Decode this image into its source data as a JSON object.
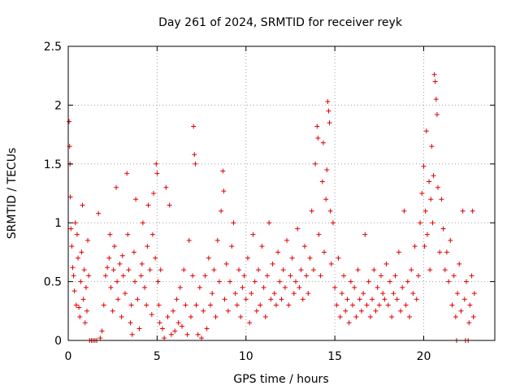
{
  "chart_data": {
    "type": "scatter",
    "title": "Day 261 of 2024, SRMTID for receiver reyk",
    "xlabel": "GPS time / hours",
    "ylabel": "SRMTID / TECUs",
    "xlim": [
      0,
      24
    ],
    "ylim": [
      0,
      2.5
    ],
    "x_ticks": [
      0,
      5,
      10,
      15,
      20
    ],
    "x_tick_labels": [
      "0",
      "5",
      "10",
      "15",
      "20"
    ],
    "y_ticks": [
      0,
      0.5,
      1,
      1.5,
      2,
      2.5
    ],
    "y_tick_labels": [
      "0",
      "0.5",
      "1",
      "1.5",
      "2",
      "2.5"
    ],
    "grid": true,
    "marker": "plus",
    "series": [
      {
        "name": "SRMTID",
        "color": "#e00000",
        "points": [
          [
            0.05,
            1.86
          ],
          [
            0.08,
            1.65
          ],
          [
            0.1,
            1.5
          ],
          [
            0.12,
            1.22
          ],
          [
            0.15,
            0.95
          ],
          [
            0.2,
            0.8
          ],
          [
            0.25,
            0.62
          ],
          [
            0.3,
            0.55
          ],
          [
            0.35,
            0.42
          ],
          [
            0.4,
            1.0
          ],
          [
            0.45,
            0.3
          ],
          [
            0.5,
            0.9
          ],
          [
            0.55,
            0.7
          ],
          [
            0.6,
            0.28
          ],
          [
            0.65,
            0.2
          ],
          [
            0.7,
            0.5
          ],
          [
            0.75,
            0.75
          ],
          [
            0.8,
            1.15
          ],
          [
            0.85,
            0.35
          ],
          [
            0.9,
            0.6
          ],
          [
            0.95,
            0.15
          ],
          [
            1.0,
            0.45
          ],
          [
            1.05,
            0.25
          ],
          [
            1.1,
            0.85
          ],
          [
            1.15,
            0.55
          ],
          [
            1.2,
            0.0
          ],
          [
            1.3,
            0.0
          ],
          [
            1.4,
            0.0
          ],
          [
            1.5,
            0.0
          ],
          [
            1.6,
            0.0
          ],
          [
            1.7,
            1.08
          ],
          [
            1.8,
            0.02
          ],
          [
            1.9,
            0.08
          ],
          [
            2.0,
            0.3
          ],
          [
            2.1,
            0.55
          ],
          [
            2.2,
            0.62
          ],
          [
            2.3,
            0.7
          ],
          [
            2.35,
            0.9
          ],
          [
            2.4,
            0.45
          ],
          [
            2.5,
            0.25
          ],
          [
            2.55,
            0.6
          ],
          [
            2.6,
            0.8
          ],
          [
            2.7,
            1.3
          ],
          [
            2.75,
            0.5
          ],
          [
            2.8,
            0.35
          ],
          [
            2.9,
            0.65
          ],
          [
            3.0,
            0.2
          ],
          [
            3.05,
            0.72
          ],
          [
            3.1,
            0.55
          ],
          [
            3.2,
            0.4
          ],
          [
            3.3,
            1.42
          ],
          [
            3.35,
            0.9
          ],
          [
            3.4,
            0.6
          ],
          [
            3.5,
            0.15
          ],
          [
            3.55,
            0.3
          ],
          [
            3.6,
            0.05
          ],
          [
            3.7,
            0.75
          ],
          [
            3.75,
            0.5
          ],
          [
            3.8,
            1.2
          ],
          [
            3.9,
            0.35
          ],
          [
            4.0,
            0.1
          ],
          [
            4.1,
            0.55
          ],
          [
            4.15,
            0.65
          ],
          [
            4.2,
            1.0
          ],
          [
            4.3,
            0.45
          ],
          [
            4.4,
            0.3
          ],
          [
            4.45,
            0.8
          ],
          [
            4.5,
            1.15
          ],
          [
            4.6,
            0.6
          ],
          [
            4.7,
            0.22
          ],
          [
            4.75,
            0.9
          ],
          [
            4.8,
            1.25
          ],
          [
            4.9,
            0.7
          ],
          [
            4.95,
            1.5
          ],
          [
            5.0,
            1.42
          ],
          [
            5.05,
            0.5
          ],
          [
            5.1,
            0.3
          ],
          [
            5.15,
            0.15
          ],
          [
            5.2,
            0.6
          ],
          [
            5.3,
            0.1
          ],
          [
            5.4,
            0.02
          ],
          [
            5.5,
            1.3
          ],
          [
            5.6,
            0.2
          ],
          [
            5.7,
            1.15
          ],
          [
            5.8,
            0.05
          ],
          [
            5.9,
            0.25
          ],
          [
            6.0,
            0.08
          ],
          [
            6.1,
            0.35
          ],
          [
            6.2,
            0.15
          ],
          [
            6.3,
            0.45
          ],
          [
            6.4,
            0.12
          ],
          [
            6.5,
            0.6
          ],
          [
            6.6,
            0.3
          ],
          [
            6.7,
            0.05
          ],
          [
            6.8,
            0.85
          ],
          [
            6.9,
            0.2
          ],
          [
            7.0,
            0.55
          ],
          [
            7.05,
            1.82
          ],
          [
            7.1,
            1.58
          ],
          [
            7.15,
            1.5
          ],
          [
            7.2,
            0.3
          ],
          [
            7.3,
            0.05
          ],
          [
            7.4,
            0.45
          ],
          [
            7.5,
            0.02
          ],
          [
            7.6,
            0.25
          ],
          [
            7.7,
            0.55
          ],
          [
            7.8,
            0.1
          ],
          [
            7.9,
            0.7
          ],
          [
            8.0,
            0.3
          ],
          [
            8.1,
            0.4
          ],
          [
            8.2,
            0.6
          ],
          [
            8.3,
            0.2
          ],
          [
            8.4,
            0.85
          ],
          [
            8.5,
            0.5
          ],
          [
            8.6,
            1.1
          ],
          [
            8.7,
            1.44
          ],
          [
            8.75,
            1.27
          ],
          [
            8.8,
            0.35
          ],
          [
            8.9,
            0.65
          ],
          [
            9.0,
            0.25
          ],
          [
            9.1,
            0.5
          ],
          [
            9.2,
            0.8
          ],
          [
            9.3,
            1.0
          ],
          [
            9.4,
            0.4
          ],
          [
            9.5,
            0.3
          ],
          [
            9.6,
            0.6
          ],
          [
            9.7,
            0.2
          ],
          [
            9.8,
            0.45
          ],
          [
            9.9,
            0.55
          ],
          [
            10.0,
            0.35
          ],
          [
            10.1,
            0.7
          ],
          [
            10.2,
            0.15
          ],
          [
            10.3,
            0.4
          ],
          [
            10.4,
            0.9
          ],
          [
            10.5,
            0.5
          ],
          [
            10.6,
            0.25
          ],
          [
            10.7,
            0.6
          ],
          [
            10.8,
            0.3
          ],
          [
            10.9,
            0.8
          ],
          [
            11.0,
            0.45
          ],
          [
            11.1,
            0.2
          ],
          [
            11.2,
            0.55
          ],
          [
            11.3,
            1.0
          ],
          [
            11.4,
            0.35
          ],
          [
            11.5,
            0.65
          ],
          [
            11.6,
            0.4
          ],
          [
            11.7,
            0.3
          ],
          [
            11.8,
            0.75
          ],
          [
            11.9,
            0.5
          ],
          [
            12.0,
            0.35
          ],
          [
            12.1,
            0.6
          ],
          [
            12.2,
            0.45
          ],
          [
            12.3,
            0.85
          ],
          [
            12.4,
            0.3
          ],
          [
            12.5,
            0.55
          ],
          [
            12.6,
            0.7
          ],
          [
            12.7,
            0.4
          ],
          [
            12.8,
            0.5
          ],
          [
            12.9,
            0.95
          ],
          [
            13.0,
            0.45
          ],
          [
            13.1,
            0.6
          ],
          [
            13.2,
            0.35
          ],
          [
            13.3,
            0.8
          ],
          [
            13.4,
            0.55
          ],
          [
            13.5,
            0.4
          ],
          [
            13.6,
            0.7
          ],
          [
            13.7,
            1.1
          ],
          [
            13.8,
            0.6
          ],
          [
            13.9,
            1.5
          ],
          [
            14.0,
            1.82
          ],
          [
            14.05,
            1.72
          ],
          [
            14.1,
            0.9
          ],
          [
            14.2,
            0.55
          ],
          [
            14.3,
            1.35
          ],
          [
            14.35,
            1.68
          ],
          [
            14.4,
            0.75
          ],
          [
            14.5,
            1.2
          ],
          [
            14.55,
            1.45
          ],
          [
            14.6,
            2.03
          ],
          [
            14.65,
            1.95
          ],
          [
            14.7,
            1.85
          ],
          [
            14.75,
            1.1
          ],
          [
            14.8,
            0.65
          ],
          [
            14.9,
            1.0
          ],
          [
            15.0,
            0.45
          ],
          [
            15.1,
            0.3
          ],
          [
            15.2,
            0.7
          ],
          [
            15.3,
            0.2
          ],
          [
            15.4,
            0.4
          ],
          [
            15.5,
            0.55
          ],
          [
            15.6,
            0.25
          ],
          [
            15.7,
            0.35
          ],
          [
            15.8,
            0.15
          ],
          [
            15.9,
            0.5
          ],
          [
            16.0,
            0.3
          ],
          [
            16.1,
            0.45
          ],
          [
            16.2,
            0.2
          ],
          [
            16.3,
            0.6
          ],
          [
            16.4,
            0.35
          ],
          [
            16.5,
            0.25
          ],
          [
            16.6,
            0.4
          ],
          [
            16.7,
            0.9
          ],
          [
            16.8,
            0.3
          ],
          [
            16.9,
            0.5
          ],
          [
            17.0,
            0.2
          ],
          [
            17.1,
            0.35
          ],
          [
            17.2,
            0.6
          ],
          [
            17.3,
            0.25
          ],
          [
            17.4,
            0.45
          ],
          [
            17.5,
            0.3
          ],
          [
            17.6,
            0.55
          ],
          [
            17.7,
            0.4
          ],
          [
            17.8,
            0.35
          ],
          [
            17.9,
            0.65
          ],
          [
            18.0,
            0.3
          ],
          [
            18.1,
            0.5
          ],
          [
            18.2,
            0.2
          ],
          [
            18.3,
            0.4
          ],
          [
            18.4,
            0.55
          ],
          [
            18.5,
            0.35
          ],
          [
            18.6,
            0.75
          ],
          [
            18.7,
            0.25
          ],
          [
            18.8,
            0.45
          ],
          [
            18.9,
            1.1
          ],
          [
            19.0,
            0.3
          ],
          [
            19.1,
            0.5
          ],
          [
            19.2,
            0.2
          ],
          [
            19.3,
            0.6
          ],
          [
            19.4,
            0.4
          ],
          [
            19.5,
            0.8
          ],
          [
            19.6,
            0.35
          ],
          [
            19.7,
            0.55
          ],
          [
            19.8,
            1.0
          ],
          [
            19.9,
            1.25
          ],
          [
            20.0,
            1.48
          ],
          [
            20.05,
            0.8
          ],
          [
            20.1,
            1.1
          ],
          [
            20.15,
            1.78
          ],
          [
            20.2,
            0.9
          ],
          [
            20.3,
            1.35
          ],
          [
            20.35,
            0.6
          ],
          [
            20.4,
            1.2
          ],
          [
            20.45,
            1.65
          ],
          [
            20.5,
            1.0
          ],
          [
            20.55,
            1.4
          ],
          [
            20.6,
            2.26
          ],
          [
            20.65,
            2.2
          ],
          [
            20.7,
            2.05
          ],
          [
            20.75,
            1.92
          ],
          [
            20.8,
            1.3
          ],
          [
            20.9,
            0.75
          ],
          [
            21.0,
            1.2
          ],
          [
            21.1,
            0.95
          ],
          [
            21.2,
            0.6
          ],
          [
            21.3,
            0.75
          ],
          [
            21.4,
            0.5
          ],
          [
            21.5,
            0.85
          ],
          [
            21.6,
            0.3
          ],
          [
            21.7,
            0.55
          ],
          [
            21.8,
            0.2
          ],
          [
            21.85,
            0.0
          ],
          [
            21.9,
            0.4
          ],
          [
            22.0,
            0.65
          ],
          [
            22.1,
            0.25
          ],
          [
            22.2,
            1.1
          ],
          [
            22.3,
            0.35
          ],
          [
            22.35,
            0.0
          ],
          [
            22.4,
            0.5
          ],
          [
            22.5,
            0.0
          ],
          [
            22.55,
            0.15
          ],
          [
            22.6,
            0.3
          ],
          [
            22.7,
            0.55
          ],
          [
            22.75,
            1.1
          ],
          [
            22.8,
            0.2
          ],
          [
            22.85,
            0.4
          ]
        ]
      }
    ]
  }
}
